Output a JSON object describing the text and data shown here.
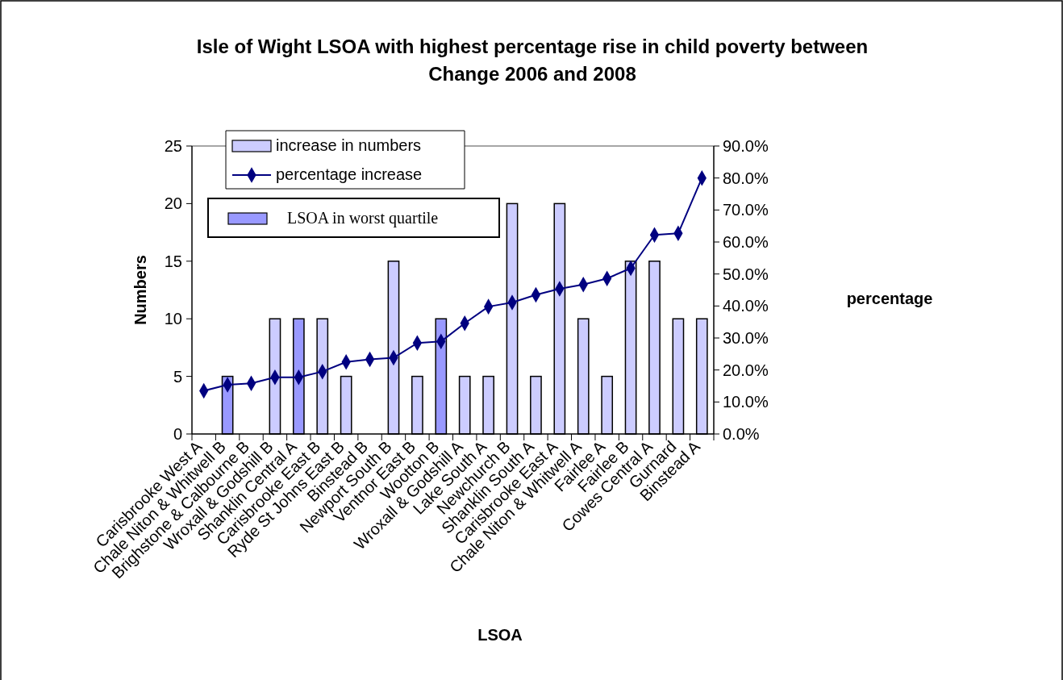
{
  "chart_data": {
    "type": "bar",
    "title": "Isle of Wight LSOA with highest percentage rise in child poverty between Change 2006 and 2008",
    "xlabel": "LSOA",
    "ylabel": "Numbers",
    "y2label": "percentage",
    "categories": [
      "Carisbrooke West A",
      "Chale Niton & Whitwell B",
      "Brighstone & Calbourne B",
      "Wroxall & Godshill B",
      "Shanklin Central A",
      "Carisbrooke East B",
      "Ryde St Johns East B",
      "Binstead B",
      "Newport South B",
      "Ventnor East B",
      "Wootton B",
      "Wroxall & Godshill A",
      "Lake South A",
      "Newchurch B",
      "Shanklin South A",
      "Carisbrooke East A",
      "Chale Niton & Whitwell A",
      "Fairlee A",
      "Fairlee B",
      "Cowes Central A",
      "Gurnard",
      "Binstead A"
    ],
    "series": [
      {
        "name": "increase in numbers",
        "color": "#ccccff",
        "values": [
          0,
          null,
          0,
          10,
          null,
          10,
          5,
          0,
          15,
          5,
          null,
          5,
          5,
          20,
          5,
          20,
          10,
          5,
          15,
          15,
          10,
          10
        ]
      },
      {
        "name": "percentage increase",
        "type": "line",
        "axis": "y2",
        "color": "#000080",
        "values": [
          13.5,
          15.4,
          15.8,
          17.7,
          17.7,
          19.5,
          22.5,
          23.3,
          23.8,
          28.4,
          28.9,
          34.6,
          39.8,
          41.1,
          43.5,
          45.4,
          46.7,
          48.6,
          51.8,
          62.2,
          62.7,
          80.0
        ]
      },
      {
        "name": "LSOA in worst quartile",
        "color": "#9999ff",
        "values": [
          null,
          5,
          null,
          null,
          10,
          null,
          null,
          null,
          null,
          null,
          10,
          null,
          null,
          null,
          null,
          null,
          null,
          null,
          null,
          null,
          null,
          null
        ]
      }
    ],
    "ylim": [
      0,
      25
    ],
    "yticks": [
      0,
      5,
      10,
      15,
      20,
      25
    ],
    "y2lim": [
      0,
      90
    ],
    "y2ticks": [
      {
        "value": 0,
        "label": "0.0%"
      },
      {
        "value": 10,
        "label": "10.0%"
      },
      {
        "value": 20,
        "label": "20.0%"
      },
      {
        "value": 30,
        "label": "30.0%"
      },
      {
        "value": 40,
        "label": "40.0%"
      },
      {
        "value": 50,
        "label": "50.0%"
      },
      {
        "value": 60,
        "label": "60.0%"
      },
      {
        "value": 70,
        "label": "70.0%"
      },
      {
        "value": 80,
        "label": "80.0%"
      },
      {
        "value": 90,
        "label": "90.0%"
      }
    ],
    "grid": false,
    "legend": "top left",
    "marker": "diamond",
    "line_style": "solid"
  }
}
